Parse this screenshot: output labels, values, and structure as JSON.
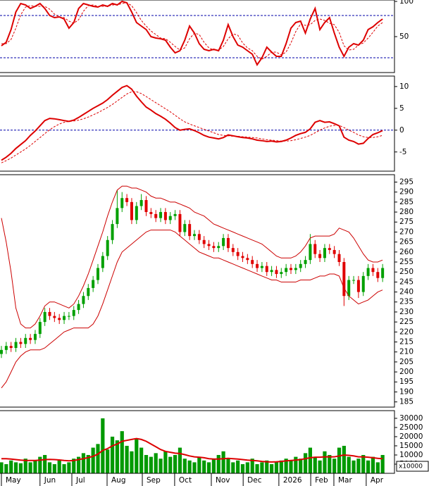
{
  "chart_data": [
    {
      "type": "line",
      "ylim": [
        -1,
        102
      ],
      "yticks": [
        50,
        100
      ],
      "hlines": [
        80,
        20
      ],
      "hline_color": "#0000aa",
      "series": [
        {
          "color": "#dd0000",
          "values": [
            37,
            42,
            60,
            85,
            97,
            95,
            90,
            93,
            97,
            90,
            80,
            77,
            78,
            75,
            62,
            70,
            90,
            97,
            95,
            93,
            92,
            95,
            93,
            97,
            95,
            100,
            98,
            85,
            70,
            65,
            60,
            50,
            48,
            47,
            45,
            35,
            27,
            30,
            45,
            65,
            55,
            40,
            32,
            30,
            32,
            30,
            45,
            67,
            50,
            38,
            35,
            30,
            25,
            10,
            20,
            35,
            28,
            22,
            22,
            40,
            62,
            70,
            72,
            55,
            75,
            90,
            60,
            70,
            77,
            55,
            35,
            22,
            35,
            40,
            38,
            45,
            60,
            64,
            70,
            75
          ]
        },
        {
          "color": "#dd0000",
          "dashed": true,
          "values": [
            40,
            40,
            46,
            62,
            81,
            92,
            94,
            93,
            93,
            93,
            89,
            82,
            78,
            77,
            72,
            69,
            74,
            86,
            94,
            95,
            93,
            93,
            93,
            95,
            95,
            97,
            98,
            94,
            84,
            73,
            65,
            58,
            53,
            48,
            47,
            42,
            36,
            31,
            34,
            47,
            55,
            53,
            42,
            34,
            31,
            31,
            36,
            47,
            54,
            52,
            41,
            34,
            30,
            22,
            18,
            22,
            28,
            28,
            24,
            28,
            41,
            57,
            68,
            66,
            67,
            73,
            75,
            73,
            69,
            67,
            56,
            37,
            31,
            32,
            38,
            41,
            48,
            56,
            65,
            70
          ]
        }
      ]
    },
    {
      "type": "line",
      "ylim": [
        -9.4,
        12.4
      ],
      "yticks": [
        -5,
        0,
        5,
        10
      ],
      "hlines": [
        0
      ],
      "hline_color": "#0000aa",
      "series": [
        {
          "color": "#dd0000",
          "values": [
            -6.9,
            -6.2,
            -5.3,
            -4.2,
            -3.3,
            -2.4,
            -1.2,
            -0.2,
            1.0,
            2.2,
            2.7,
            2.6,
            2.4,
            2.2,
            2.0,
            2.3,
            2.9,
            3.6,
            4.3,
            5.0,
            5.6,
            6.2,
            7.0,
            8.0,
            8.9,
            9.8,
            10.2,
            9.4,
            7.8,
            6.5,
            5.3,
            4.6,
            3.8,
            3.2,
            2.5,
            1.6,
            0.6,
            0.0,
            0.2,
            0.3,
            -0.1,
            -0.6,
            -1.2,
            -1.6,
            -1.8,
            -2.0,
            -1.7,
            -1.1,
            -1.3,
            -1.5,
            -1.7,
            -1.8,
            -2.0,
            -2.3,
            -2.4,
            -2.6,
            -2.5,
            -2.7,
            -2.6,
            -2.3,
            -1.8,
            -1.2,
            -0.8,
            -0.5,
            0.3,
            1.8,
            2.2,
            1.8,
            1.9,
            1.5,
            1.0,
            -1.6,
            -2.3,
            -2.6,
            -3.2,
            -3.0,
            -1.9,
            -1.0,
            -0.6,
            -0.1
          ]
        },
        {
          "color": "#dd0000",
          "dashed": true,
          "values": [
            -7.5,
            -7.0,
            -6.4,
            -5.7,
            -5.0,
            -4.3,
            -3.5,
            -2.6,
            -1.7,
            -0.8,
            0.1,
            0.8,
            1.4,
            1.8,
            2.0,
            2.1,
            2.3,
            2.6,
            3.0,
            3.5,
            4.0,
            4.6,
            5.2,
            5.9,
            6.7,
            7.5,
            8.3,
            8.8,
            8.8,
            8.4,
            7.7,
            7.0,
            6.3,
            5.6,
            4.9,
            4.2,
            3.4,
            2.6,
            1.9,
            1.4,
            1.0,
            0.6,
            0.2,
            -0.2,
            -0.6,
            -1.0,
            -1.2,
            -1.3,
            -1.4,
            -1.4,
            -1.5,
            -1.6,
            -1.7,
            -1.8,
            -2.0,
            -2.2,
            -2.3,
            -2.4,
            -2.5,
            -2.5,
            -2.4,
            -2.2,
            -1.9,
            -1.6,
            -1.2,
            -0.6,
            0.0,
            0.5,
            0.9,
            1.1,
            1.1,
            0.6,
            0.0,
            -0.5,
            -1.1,
            -1.5,
            -1.7,
            -1.7,
            -1.5,
            -1.2
          ]
        }
      ]
    },
    {
      "type": "candlestick",
      "ylim": [
        182.4,
        298.7
      ],
      "yticks": [
        185,
        190,
        195,
        200,
        205,
        210,
        215,
        220,
        225,
        230,
        235,
        240,
        245,
        250,
        255,
        260,
        265,
        270,
        275,
        280,
        285,
        290,
        295
      ],
      "up_color": "#00a000",
      "down_color": "#e00000",
      "open": [
        209,
        211,
        213,
        212,
        215,
        214,
        217,
        216,
        219,
        225,
        230,
        228,
        227,
        226,
        228,
        228,
        231,
        234,
        238,
        242,
        246,
        252,
        258,
        266,
        274,
        282,
        287,
        285,
        276,
        283,
        286,
        280,
        279,
        277,
        280,
        276,
        278,
        279,
        270,
        274,
        268,
        269,
        266,
        264,
        263,
        262,
        263,
        267,
        262,
        260,
        258,
        257,
        256,
        254,
        252,
        253,
        250,
        251,
        249,
        250,
        252,
        251,
        252,
        254,
        256,
        264,
        259,
        257,
        262,
        261,
        259,
        255,
        238,
        246,
        246,
        240,
        248,
        252,
        250,
        247
      ],
      "high": [
        213,
        215,
        215,
        217,
        217,
        219,
        219,
        221,
        227,
        232,
        232,
        230,
        229,
        230,
        230,
        233,
        236,
        240,
        244,
        248,
        254,
        260,
        268,
        276,
        291,
        290,
        289,
        287,
        285,
        289,
        288,
        282,
        281,
        282,
        282,
        280,
        281,
        281,
        276,
        276,
        271,
        271,
        268,
        266,
        265,
        265,
        269,
        269,
        264,
        262,
        260,
        259,
        258,
        256,
        255,
        255,
        253,
        253,
        252,
        254,
        254,
        254,
        256,
        258,
        269,
        266,
        261,
        264,
        264,
        263,
        261,
        257,
        248,
        248,
        248,
        250,
        254,
        254,
        252,
        254
      ],
      "low": [
        207,
        209,
        210,
        210,
        212,
        212,
        214,
        214,
        217,
        223,
        226,
        225,
        224,
        224,
        226,
        226,
        229,
        232,
        236,
        240,
        244,
        250,
        256,
        264,
        272,
        280,
        283,
        274,
        274,
        281,
        278,
        277,
        275,
        275,
        274,
        274,
        276,
        268,
        268,
        266,
        266,
        264,
        262,
        261,
        260,
        260,
        261,
        260,
        258,
        256,
        255,
        254,
        252,
        250,
        250,
        248,
        248,
        247,
        247,
        248,
        249,
        249,
        250,
        252,
        254,
        257,
        255,
        255,
        259,
        257,
        253,
        233,
        236,
        244,
        237,
        238,
        246,
        248,
        245,
        245
      ],
      "close": [
        211,
        213,
        212,
        215,
        214,
        217,
        216,
        219,
        225,
        230,
        228,
        227,
        226,
        228,
        228,
        231,
        234,
        238,
        242,
        246,
        252,
        258,
        266,
        274,
        282,
        287,
        285,
        276,
        283,
        286,
        280,
        279,
        277,
        280,
        276,
        278,
        279,
        270,
        274,
        268,
        269,
        266,
        264,
        263,
        262,
        263,
        267,
        262,
        260,
        258,
        257,
        256,
        254,
        252,
        253,
        250,
        251,
        249,
        250,
        252,
        251,
        252,
        254,
        256,
        264,
        259,
        257,
        262,
        261,
        259,
        255,
        238,
        246,
        246,
        240,
        248,
        252,
        250,
        247,
        252
      ],
      "series": [
        {
          "color": "#cc0000",
          "values": [
            277,
            265,
            250,
            232,
            224,
            222,
            222,
            224,
            228,
            233,
            235,
            235,
            234,
            233,
            232,
            234,
            238,
            243,
            249,
            256,
            263,
            270,
            278,
            285,
            291,
            293,
            293,
            292,
            292,
            291,
            290,
            288,
            287,
            287,
            286,
            285,
            285,
            284,
            283,
            282,
            280,
            279,
            278,
            276,
            274,
            273,
            272,
            271,
            270,
            269,
            268,
            267,
            266,
            265,
            264,
            262,
            260,
            258,
            257,
            257,
            257,
            258,
            260,
            263,
            267,
            268,
            268,
            268,
            268,
            269,
            272,
            271,
            270,
            267,
            263,
            259,
            256,
            255,
            255,
            256
          ]
        },
        {
          "color": "#cc0000",
          "values": [
            192,
            195,
            200,
            205,
            208,
            210,
            211,
            211,
            211,
            212,
            214,
            216,
            218,
            220,
            221,
            222,
            222,
            222,
            222,
            224,
            228,
            234,
            241,
            248,
            255,
            260,
            262,
            264,
            266,
            268,
            270,
            271,
            271,
            271,
            271,
            271,
            270,
            268,
            266,
            264,
            262,
            260,
            259,
            258,
            257,
            257,
            256,
            255,
            254,
            253,
            252,
            251,
            250,
            249,
            248,
            247,
            246,
            246,
            245,
            245,
            245,
            245,
            246,
            246,
            246,
            247,
            248,
            248,
            249,
            249,
            248,
            242,
            238,
            236,
            234,
            235,
            236,
            238,
            240,
            241
          ]
        }
      ]
    },
    {
      "type": "bar",
      "ylim": [
        0,
        34200
      ],
      "yticks": [
        5000,
        10000,
        15000,
        20000,
        25000,
        30000
      ],
      "unit_label": "x10000",
      "color": "#009900",
      "values": [
        6000,
        5000,
        7000,
        6000,
        5500,
        8000,
        6000,
        7000,
        9000,
        10000,
        6000,
        5000,
        7000,
        5000,
        6000,
        8000,
        9000,
        11000,
        10000,
        14000,
        16000,
        30000,
        13000,
        20000,
        18000,
        23000,
        15000,
        12000,
        19000,
        14000,
        10000,
        9000,
        11000,
        8000,
        12000,
        9000,
        10000,
        14000,
        8000,
        7000,
        6000,
        9000,
        7000,
        6000,
        8000,
        10000,
        12000,
        8000,
        6000,
        7000,
        5000,
        6000,
        8000,
        5000,
        6000,
        7000,
        5000,
        6000,
        7000,
        8000,
        7000,
        9000,
        8000,
        11000,
        14000,
        9000,
        7000,
        12000,
        10000,
        8000,
        14000,
        15000,
        9000,
        7000,
        8000,
        10000,
        7000,
        9000,
        6000,
        10000
      ],
      "series": [
        {
          "color": "#dd0000",
          "values": [
            8000,
            8000,
            7800,
            7500,
            7200,
            7000,
            7000,
            7000,
            7200,
            7500,
            7600,
            7500,
            7300,
            7000,
            6800,
            7000,
            7500,
            8000,
            8600,
            9300,
            10500,
            12500,
            13500,
            15000,
            16000,
            17500,
            18000,
            18500,
            19000,
            18500,
            17500,
            16000,
            14500,
            13000,
            12000,
            11500,
            11000,
            10800,
            10200,
            9500,
            9000,
            8800,
            8500,
            8000,
            7800,
            7800,
            8000,
            8200,
            8000,
            7800,
            7500,
            7200,
            7000,
            6800,
            6500,
            6300,
            6200,
            6300,
            6500,
            6800,
            7000,
            7200,
            7500,
            8000,
            8500,
            8800,
            8800,
            9000,
            9000,
            9000,
            9500,
            10000,
            9800,
            9500,
            9000,
            9000,
            8800,
            8500,
            8200,
            8000
          ]
        }
      ],
      "xticks": [
        {
          "value": 0,
          "label": "May"
        },
        {
          "value": 8,
          "label": "Jun"
        },
        {
          "value": 14.6,
          "label": "Jul"
        },
        {
          "value": 21.9,
          "label": "Aug"
        },
        {
          "value": 29.2,
          "label": "Sep"
        },
        {
          "value": 35.9,
          "label": "Oct"
        },
        {
          "value": 43.5,
          "label": "Nov"
        },
        {
          "value": 50.1,
          "label": "Dec"
        },
        {
          "value": 57.5,
          "label": "2026"
        },
        {
          "value": 64.1,
          "label": "Feb"
        },
        {
          "value": 68.9,
          "label": "Mar"
        },
        {
          "value": 75.6,
          "label": "Apr"
        }
      ]
    }
  ]
}
